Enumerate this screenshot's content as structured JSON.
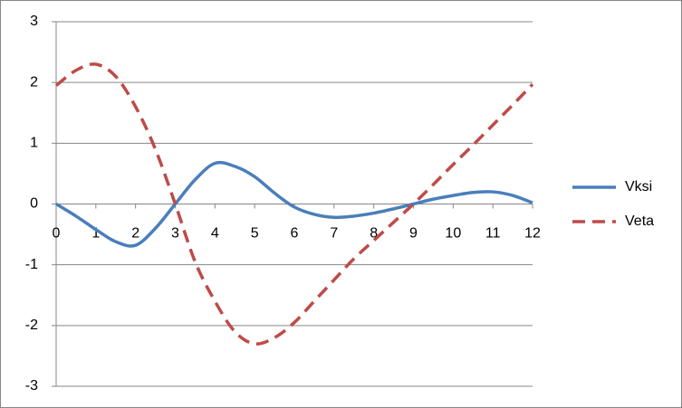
{
  "chart_data": {
    "type": "line",
    "x": [
      0,
      0.5,
      1,
      1.5,
      2,
      2.5,
      3,
      3.5,
      4,
      4.5,
      5,
      5.5,
      6,
      6.5,
      7,
      7.5,
      8,
      8.5,
      9,
      9.5,
      10,
      10.5,
      11,
      11.5,
      12
    ],
    "series": [
      {
        "name": "Vksi",
        "color": "#4a7ebb",
        "dash": "solid",
        "values": [
          0,
          -0.2,
          -0.42,
          -0.62,
          -0.68,
          -0.4,
          0,
          0.4,
          0.67,
          0.62,
          0.45,
          0.18,
          -0.05,
          -0.17,
          -0.22,
          -0.2,
          -0.15,
          -0.08,
          0,
          0.08,
          0.14,
          0.19,
          0.2,
          0.14,
          0.02
        ]
      },
      {
        "name": "Veta",
        "color": "#be4b48",
        "dash": "dashed",
        "values": [
          1.95,
          2.2,
          2.3,
          2.1,
          1.6,
          0.9,
          0,
          -0.95,
          -1.6,
          -2.1,
          -2.3,
          -2.2,
          -1.95,
          -1.6,
          -1.25,
          -0.9,
          -0.6,
          -0.3,
          0,
          0.32,
          0.65,
          0.97,
          1.3,
          1.63,
          1.97
        ]
      }
    ],
    "xlim": [
      0,
      12
    ],
    "xticks": [
      0,
      1,
      2,
      3,
      4,
      5,
      6,
      7,
      8,
      9,
      10,
      11,
      12
    ],
    "ylim": [
      -3,
      3
    ],
    "yticks": [
      -3,
      -2,
      -1,
      0,
      1,
      2,
      3
    ],
    "grid": true,
    "legend": "right"
  }
}
